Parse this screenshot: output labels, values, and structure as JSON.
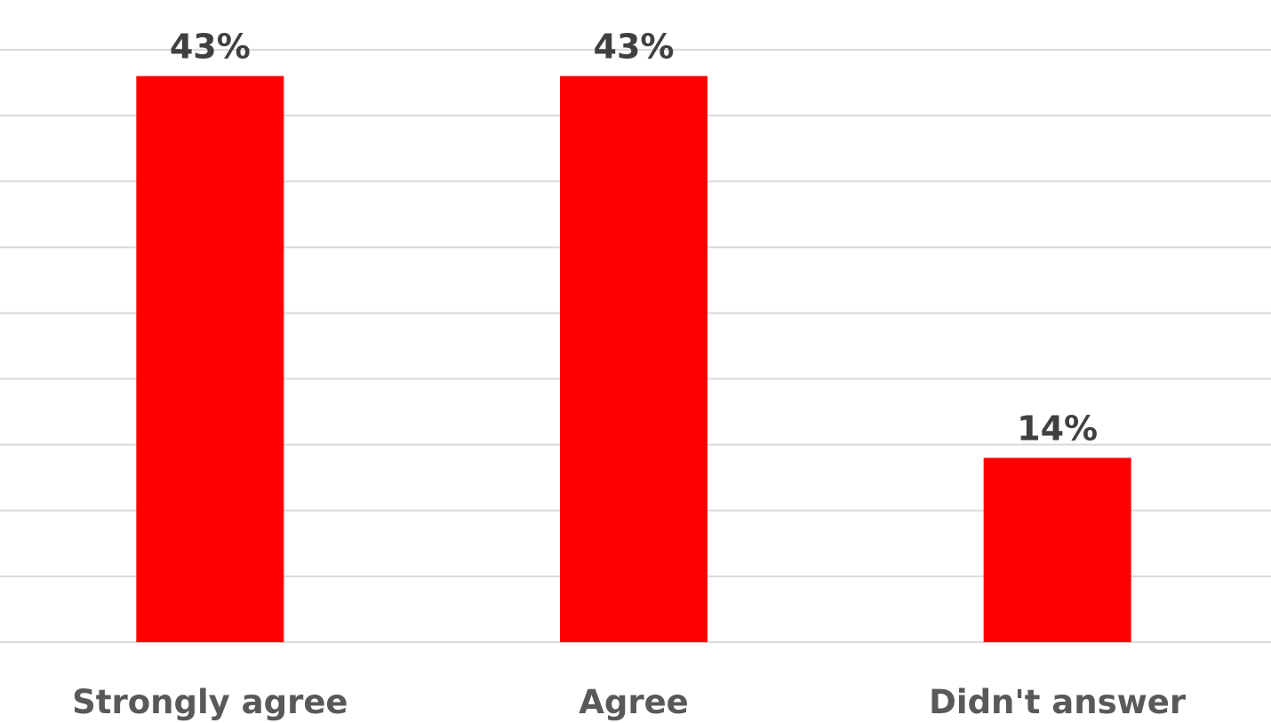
{
  "chart_data": {
    "type": "bar",
    "categories": [
      "Strongly agree",
      "Agree",
      "Didn't answer"
    ],
    "values": [
      43,
      43,
      14
    ],
    "data_labels": [
      "43%",
      "43%",
      "14%"
    ],
    "ylim": [
      0,
      45
    ],
    "grid": true,
    "legend": "none",
    "bar_color": "#ff0000"
  }
}
